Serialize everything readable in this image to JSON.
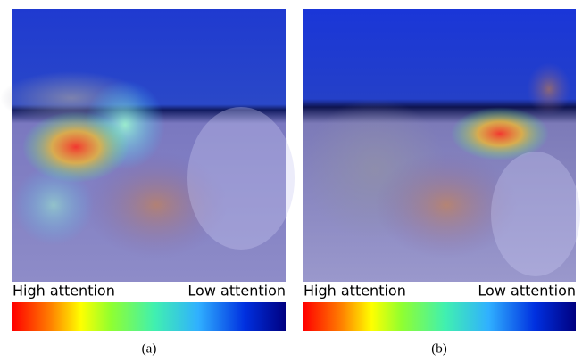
{
  "panels": [
    {
      "high_label": "High attention",
      "low_label": "Low attention",
      "caption": "(a)"
    },
    {
      "high_label": "High attention",
      "low_label": "Low attention",
      "caption": "(b)"
    }
  ]
}
